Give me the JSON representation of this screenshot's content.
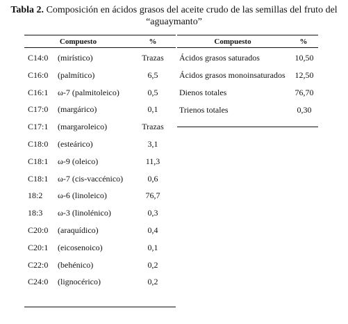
{
  "title": {
    "label": "Tabla 2.",
    "text": "Composición en ácidos grasos del aceite crudo de las semillas del fruto del",
    "text_line2": "“aguaymanto”"
  },
  "left_table": {
    "headers": {
      "compuesto": "Compuesto",
      "percent": "%"
    },
    "rows": [
      {
        "code": "C14:0",
        "name": "(mirístico)",
        "value": "Trazas"
      },
      {
        "code": "C16:0",
        "name": "(palmítico)",
        "value": "6,5"
      },
      {
        "code": "C16:1",
        "name": "ω-7 (palmitoleico)",
        "value": "0,5"
      },
      {
        "code": "C17:0",
        "name": "(margárico)",
        "value": "0,1"
      },
      {
        "code": "C17:1",
        "name": "(margaroleico)",
        "value": "Trazas"
      },
      {
        "code": "C18:0",
        "name": "(esteárico)",
        "value": "3,1"
      },
      {
        "code": "C18:1",
        "name": "ω-9   (oleico)",
        "value": "11,3"
      },
      {
        "code": "C18:1",
        "name": "ω-7  (cis-vaccénico)",
        "value": "0,6"
      },
      {
        "code": "18:2",
        "name": "ω-6  (linoleico)",
        "value": "76,7"
      },
      {
        "code": "18:3",
        "name": "ω-3   (linolénico)",
        "value": "0,3"
      },
      {
        "code": "C20:0",
        "name": "(araquídico)",
        "value": "0,4"
      },
      {
        "code": "C20:1",
        "name": "(eicosenoico)",
        "value": "0,1"
      },
      {
        "code": "C22:0",
        "name": "(behénico)",
        "value": "0,2"
      },
      {
        "code": "C24:0",
        "name": "(lignocérico)",
        "value": "0,2"
      }
    ]
  },
  "right_table": {
    "headers": {
      "compuesto": "Compuesto",
      "percent": "%"
    },
    "rows": [
      {
        "name": "Ácidos grasos saturados",
        "value": "10,50"
      },
      {
        "name": "Ácidos grasos monoinsaturados",
        "value": "12,50"
      },
      {
        "name": "Dienos totales",
        "value": "76,70"
      },
      {
        "name": "Trienos totales",
        "value": "0,30"
      }
    ]
  }
}
